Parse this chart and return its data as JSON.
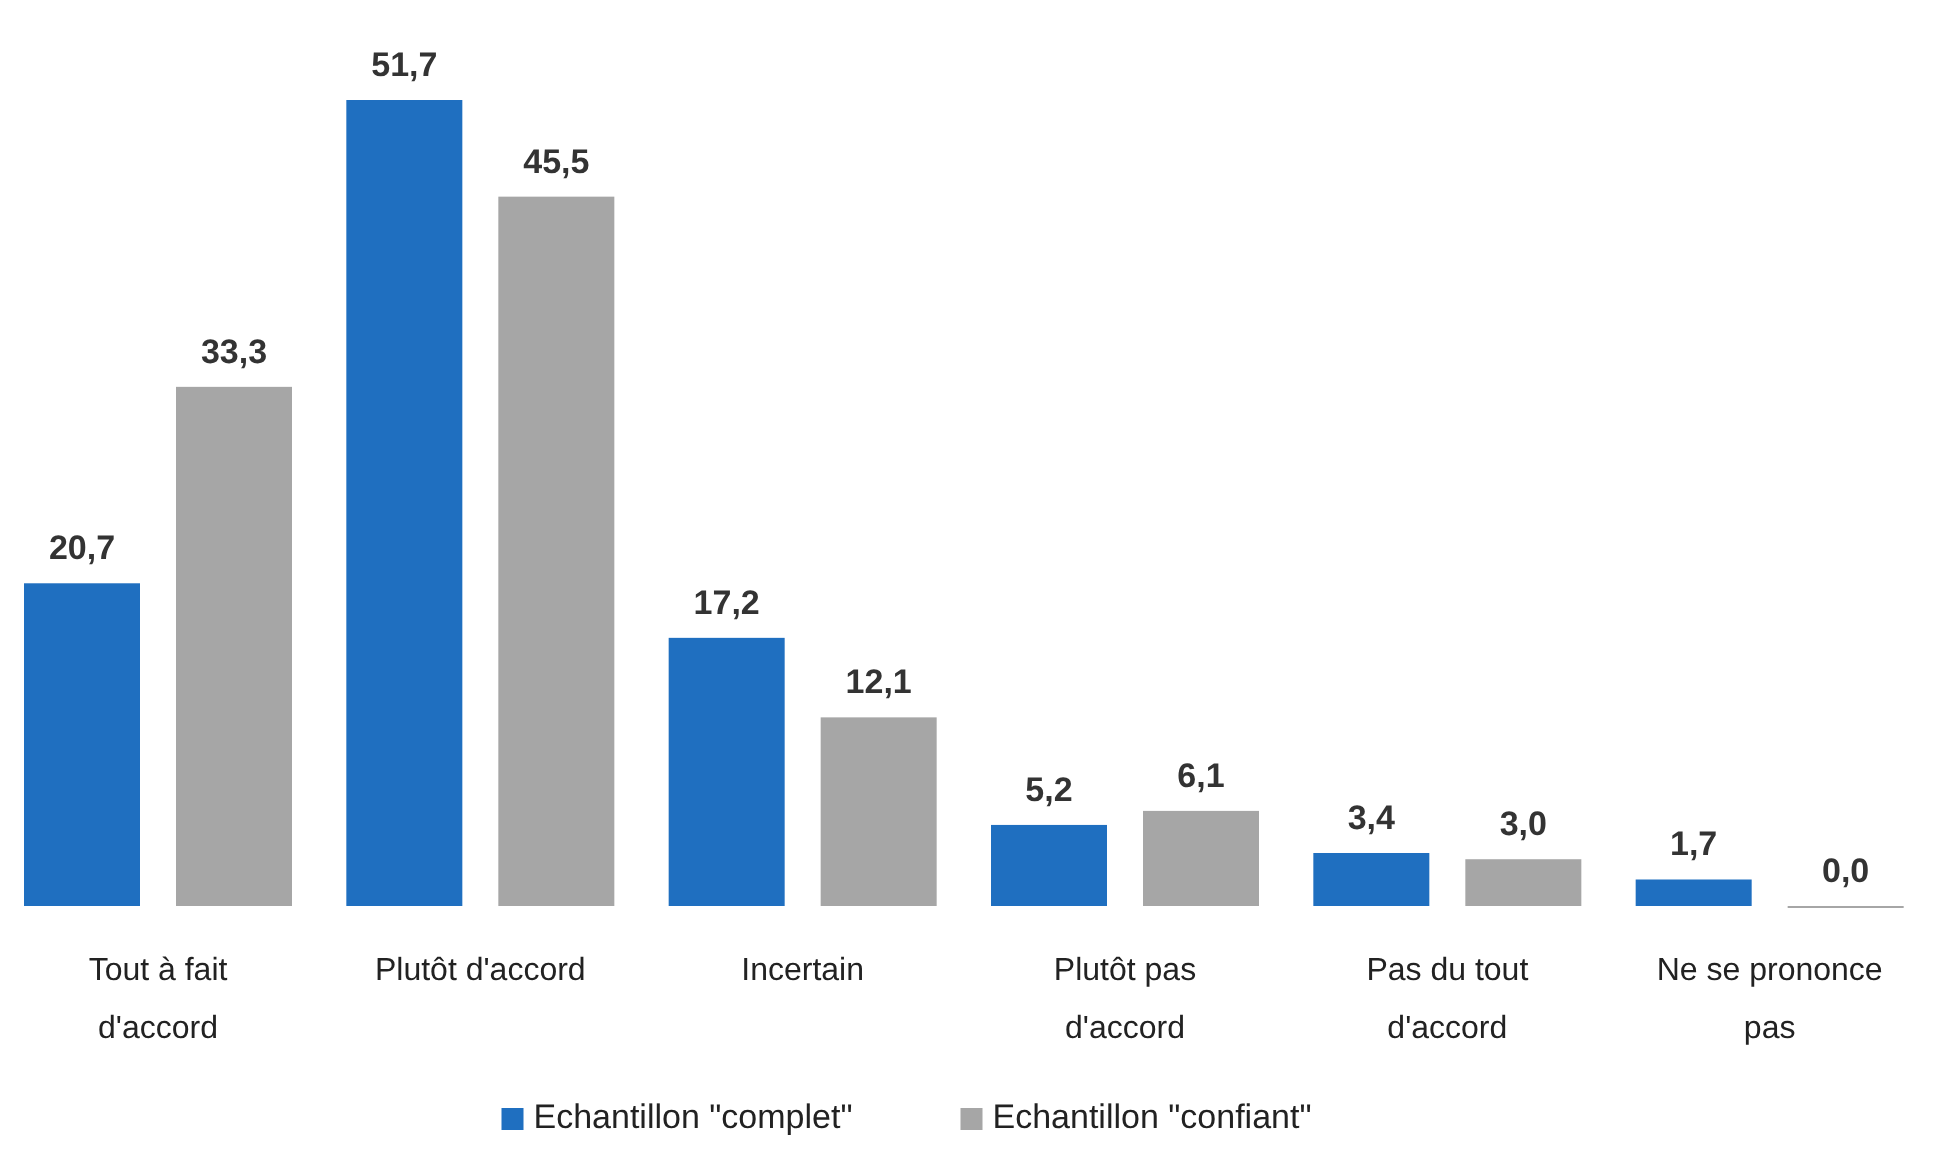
{
  "chart_data": {
    "type": "bar",
    "categories": [
      "Tout à fait d'accord",
      "Plutôt d'accord",
      "Incertain",
      "Plutôt pas d'accord",
      "Pas du tout d'accord",
      "Ne se prononce pas"
    ],
    "series": [
      {
        "name": "Echantillon \"complet\"",
        "color": "#1f6fc0",
        "values": [
          20.7,
          51.7,
          17.2,
          5.2,
          3.4,
          1.7
        ],
        "value_labels": [
          "20,7",
          "51,7",
          "17,2",
          "5,2",
          "3,4",
          "1,7"
        ]
      },
      {
        "name": "Echantillon \"confiant\"",
        "color": "#a6a6a6",
        "values": [
          33.3,
          45.5,
          12.1,
          6.1,
          3.0,
          0.0
        ],
        "value_labels": [
          "33,3",
          "45,5",
          "12,1",
          "6,1",
          "3,0",
          "0,0"
        ]
      }
    ],
    "legend": "bottom"
  }
}
